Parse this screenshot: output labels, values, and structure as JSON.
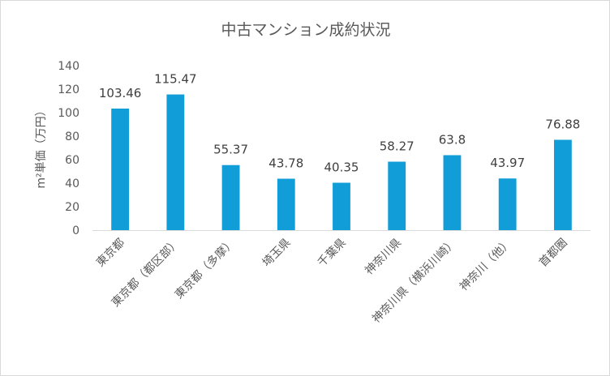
{
  "chart_data": {
    "type": "bar",
    "title": "中古マンション成約状況",
    "ylabel": "m²単価（万円）",
    "xlabel": "",
    "categories": [
      "東京都",
      "東京都（都区部）",
      "東京都（多摩）",
      "埼玉県",
      "千葉県",
      "神奈川県",
      "神奈川県（横浜川崎）",
      "神奈川（他）",
      "首都圏"
    ],
    "values": [
      103.46,
      115.47,
      55.37,
      43.78,
      40.35,
      58.27,
      63.8,
      43.97,
      76.88
    ],
    "data_labels": [
      "103.46",
      "115.47",
      "55.37",
      "43.78",
      "40.35",
      "58.27",
      "63.8",
      "43.97",
      "76.88"
    ],
    "ylim": [
      0,
      140
    ],
    "yticks": [
      0,
      20,
      40,
      60,
      80,
      100,
      120,
      140
    ],
    "grid": false,
    "legend": "none",
    "bar_color": "#119dd8"
  }
}
